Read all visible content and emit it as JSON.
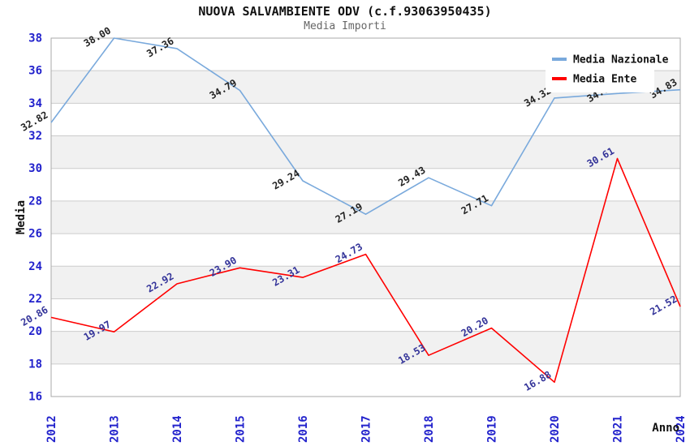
{
  "title": "NUOVA SALVAMBIENTE ODV (c.f.93063950435)",
  "subtitle": "Media Importi",
  "chart_data": {
    "type": "line",
    "x": [
      "2012",
      "2013",
      "2014",
      "2015",
      "2016",
      "2017",
      "2018",
      "2019",
      "2020",
      "2021",
      "2024"
    ],
    "series": [
      {
        "name": "Media Nazionale",
        "color": "#79A9DC",
        "label_color": "#222222",
        "values": [
          32.82,
          38.0,
          37.36,
          34.79,
          29.24,
          27.19,
          29.43,
          27.71,
          34.32,
          34.6,
          34.83
        ]
      },
      {
        "name": "Media Ente",
        "color": "#FF0000",
        "label_color": "#333399",
        "values": [
          20.86,
          19.97,
          22.92,
          23.9,
          23.31,
          24.73,
          18.53,
          20.2,
          16.88,
          30.61,
          21.52
        ]
      }
    ],
    "xlabel": "Anno",
    "ylabel": "Media",
    "ylim": [
      16,
      38
    ],
    "yticks": [
      16,
      18,
      20,
      22,
      24,
      26,
      28,
      30,
      32,
      34,
      36,
      38
    ],
    "grid": true,
    "legend_position": "top-right",
    "colors": {
      "tick_text": "#2222CC",
      "axis_title_text": "#111111",
      "grid_line": "#CCCCCC",
      "plot_border": "#AAAAAA",
      "band_fill": "#F1F1F1",
      "legend_background": "#FFFFFF",
      "legend_text": "#111111"
    }
  }
}
